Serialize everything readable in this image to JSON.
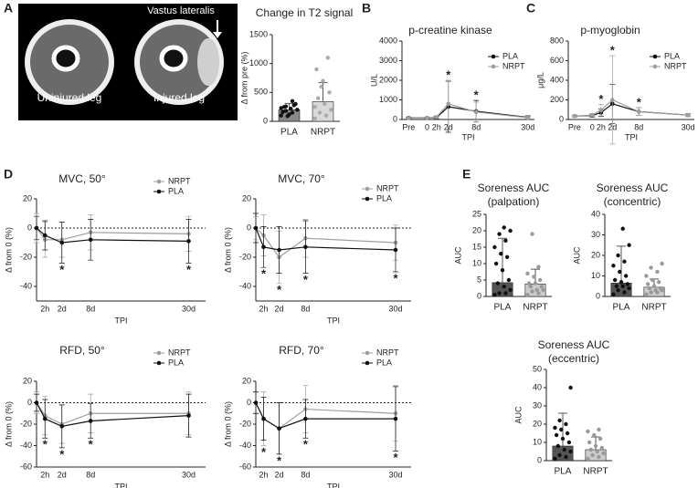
{
  "panel_letters": [
    "A",
    "B",
    "C",
    "D",
    "E"
  ],
  "image": {
    "labels": [
      "Vastus lateralis",
      "Uninjured leg",
      "Injured leg"
    ]
  },
  "chart_data": [
    {
      "type": "bar",
      "title": "Change in T2 signal",
      "ylabel": "Δ from pre (%)",
      "categories": [
        "PLA",
        "NRPT"
      ],
      "values": [
        200,
        340
      ],
      "errors": [
        110,
        330
      ],
      "colors": [
        "#888888",
        "#d9d9d9"
      ],
      "point_colors": [
        "#111111",
        "#aaaaaa"
      ],
      "points": [
        [
          100,
          150,
          180,
          200,
          220,
          250,
          300,
          120,
          160,
          280,
          90,
          230,
          350,
          260
        ],
        [
          50,
          100,
          150,
          200,
          300,
          400,
          500,
          700,
          900,
          1100,
          600,
          250
        ]
      ],
      "ylim": [
        0,
        1500
      ],
      "yticks": [
        0,
        500,
        1000,
        1500
      ]
    },
    {
      "type": "line",
      "title": "p-creatine kinase",
      "ylabel": "U/L",
      "xlabel": "TPI",
      "categories": [
        "Pre",
        "0",
        "2h",
        "2d",
        "8d",
        "30d"
      ],
      "series": [
        {
          "name": "PLA",
          "color": "#111111",
          "values": [
            80,
            80,
            100,
            650,
            420,
            110
          ],
          "errors": [
            40,
            40,
            50,
            1300,
            550,
            80
          ]
        },
        {
          "name": "NRPT",
          "color": "#9e9e9e",
          "values": [
            70,
            80,
            120,
            800,
            380,
            90
          ],
          "errors": [
            30,
            40,
            60,
            1200,
            500,
            60
          ]
        }
      ],
      "annotations": [
        {
          "category": "2d",
          "text": "*"
        },
        {
          "category": "8d",
          "text": "*"
        }
      ],
      "annotation_position": "above",
      "ylim": [
        0,
        4000
      ],
      "yticks": [
        0,
        1000,
        2000,
        3000,
        4000
      ]
    },
    {
      "type": "line",
      "title": "p-myoglobin",
      "ylabel": "μg/L",
      "xlabel": "TPI",
      "categories": [
        "Pre",
        "0",
        "2h",
        "2d",
        "8d",
        "30d"
      ],
      "series": [
        {
          "name": "PLA",
          "color": "#111111",
          "values": [
            35,
            40,
            70,
            160,
            80,
            45
          ],
          "errors": [
            10,
            15,
            40,
            200,
            40,
            15
          ]
        },
        {
          "name": "NRPT",
          "color": "#9e9e9e",
          "values": [
            35,
            45,
            95,
            200,
            80,
            45
          ],
          "errors": [
            10,
            15,
            60,
            450,
            40,
            15
          ]
        }
      ],
      "annotations": [
        {
          "category": "2h",
          "text": "*"
        },
        {
          "category": "2d",
          "text": "*"
        },
        {
          "category": "8d",
          "text": "*"
        }
      ],
      "annotation_position": "above",
      "ylim": [
        0,
        800
      ],
      "yticks": [
        0,
        200,
        400,
        600,
        800
      ]
    },
    {
      "type": "line",
      "title": "MVC, 50°",
      "ylabel": "Δ from 0  (%)",
      "xlabel": "TPI",
      "categories": [
        null,
        "2h",
        "2d",
        "8d",
        "30d"
      ],
      "series": [
        {
          "name": "NRPT",
          "color": "#9e9e9e",
          "values": [
            0,
            -8,
            -8,
            -3,
            -4
          ],
          "errors": [
            10,
            12,
            12,
            12,
            12
          ]
        },
        {
          "name": "PLA",
          "color": "#111111",
          "values": [
            0,
            -5,
            -10,
            -8,
            -9
          ],
          "errors": [
            8,
            10,
            14,
            14,
            15
          ]
        }
      ],
      "annotations": [
        {
          "category": "2d",
          "text": "*"
        },
        {
          "category": "30d",
          "text": "*"
        }
      ],
      "annotation_position": "below",
      "zero_line": true,
      "ylim": [
        -50,
        20
      ],
      "yticks": [
        -40,
        -20,
        0,
        20
      ]
    },
    {
      "type": "line",
      "title": "MVC, 70°",
      "ylabel": "Δ from 0  (%)",
      "xlabel": "TPI",
      "categories": [
        null,
        "2h",
        "2d",
        "8d",
        "30d"
      ],
      "series": [
        {
          "name": "NRPT",
          "color": "#9e9e9e",
          "values": [
            0,
            -5,
            -20,
            -7,
            -10
          ],
          "errors": [
            8,
            14,
            18,
            13,
            12
          ]
        },
        {
          "name": "PLA",
          "color": "#111111",
          "values": [
            0,
            -13,
            -15,
            -13,
            -15
          ],
          "errors": [
            10,
            14,
            16,
            18,
            15
          ]
        }
      ],
      "annotations": [
        {
          "category": "2h",
          "text": "*"
        },
        {
          "category": "2d",
          "text": "*"
        },
        {
          "category": "8d",
          "text": "*"
        },
        {
          "category": "30d",
          "text": "*"
        }
      ],
      "annotation_position": "below",
      "zero_line": true,
      "ylim": [
        -50,
        20
      ],
      "yticks": [
        -40,
        -20,
        0,
        20
      ]
    },
    {
      "type": "line",
      "title": "RFD, 50°",
      "ylabel": "Δ from 0  (%)",
      "xlabel": "TPI",
      "categories": [
        null,
        "2h",
        "2d",
        "8d",
        "30d"
      ],
      "series": [
        {
          "name": "NRPT",
          "color": "#9e9e9e",
          "values": [
            0,
            -12,
            -20,
            -10,
            -10
          ],
          "errors": [
            10,
            18,
            18,
            18,
            20
          ]
        },
        {
          "name": "PLA",
          "color": "#111111",
          "values": [
            0,
            -15,
            -22,
            -17,
            -12
          ],
          "errors": [
            8,
            18,
            20,
            16,
            20
          ]
        }
      ],
      "annotations": [
        {
          "category": "2h",
          "text": "*"
        },
        {
          "category": "2d",
          "text": "*"
        },
        {
          "category": "8d",
          "text": "*"
        }
      ],
      "annotation_position": "below",
      "zero_line": true,
      "ylim": [
        -60,
        20
      ],
      "yticks": [
        -60,
        -40,
        -20,
        0,
        20
      ]
    },
    {
      "type": "line",
      "title": "RFD, 70°",
      "ylabel": "Δ from 0  (%)",
      "xlabel": "TPI",
      "categories": [
        null,
        "2h",
        "2d",
        "8d",
        "30d"
      ],
      "series": [
        {
          "name": "NRPT",
          "color": "#9e9e9e",
          "values": [
            0,
            -15,
            -24,
            -6,
            -10
          ],
          "errors": [
            10,
            25,
            24,
            22,
            26
          ]
        },
        {
          "name": "PLA",
          "color": "#111111",
          "values": [
            0,
            -15,
            -24,
            -15,
            -15
          ],
          "errors": [
            10,
            20,
            24,
            18,
            30
          ]
        }
      ],
      "annotations": [
        {
          "category": "2h",
          "text": "*"
        },
        {
          "category": "2d",
          "text": "*"
        },
        {
          "category": "8d",
          "text": "*"
        },
        {
          "category": "30d",
          "text": "*"
        }
      ],
      "annotation_position": "below",
      "zero_line": true,
      "ylim": [
        -60,
        20
      ],
      "yticks": [
        -60,
        -40,
        -20,
        0,
        20
      ]
    },
    {
      "type": "bar",
      "title": [
        "Soreness AUC",
        "(palpation)"
      ],
      "ylabel": "AUC",
      "categories": [
        "PLA",
        "NRPT"
      ],
      "values": [
        4.2,
        3.8
      ],
      "errors": [
        13.5,
        4.5
      ],
      "colors": [
        "#555555",
        "#cccccc"
      ],
      "point_colors": [
        "#111111",
        "#999999"
      ],
      "points": [
        [
          0.5,
          1,
          1,
          2,
          3,
          4,
          5,
          8,
          10,
          12,
          13,
          15,
          17,
          19,
          20,
          21
        ],
        [
          0.5,
          1,
          1.5,
          2,
          2,
          3,
          3,
          4,
          4,
          5,
          6,
          7,
          9,
          19
        ]
      ],
      "ylim": [
        0,
        25
      ],
      "yticks": [
        0,
        5,
        10,
        15,
        20,
        25
      ]
    },
    {
      "type": "bar",
      "title": [
        "Soreness AUC",
        "(concentric)"
      ],
      "ylabel": "AUC",
      "categories": [
        "PLA",
        "NRPT"
      ],
      "values": [
        6.5,
        4.5
      ],
      "errors": [
        18,
        4
      ],
      "colors": [
        "#555555",
        "#cccccc"
      ],
      "point_colors": [
        "#111111",
        "#999999"
      ],
      "points": [
        [
          1,
          2,
          3,
          4,
          5,
          5,
          6,
          7,
          8,
          10,
          12,
          15,
          17,
          20,
          25,
          33
        ],
        [
          1,
          2,
          2,
          3,
          3,
          4,
          4,
          5,
          6,
          7,
          8,
          10,
          12,
          14,
          16
        ]
      ],
      "ylim": [
        0,
        40
      ],
      "yticks": [
        0,
        10,
        20,
        30,
        40
      ]
    },
    {
      "type": "bar",
      "title": [
        "Soreness AUC",
        "(eccentric)"
      ],
      "ylabel": "AUC",
      "categories": [
        "PLA",
        "NRPT"
      ],
      "values": [
        8,
        6
      ],
      "errors": [
        18,
        7
      ],
      "colors": [
        "#555555",
        "#cccccc"
      ],
      "point_colors": [
        "#111111",
        "#999999"
      ],
      "points": [
        [
          1,
          2,
          3,
          5,
          6,
          8,
          10,
          12,
          14,
          15,
          17,
          18,
          20,
          22,
          40
        ],
        [
          1,
          2,
          3,
          4,
          5,
          6,
          7,
          8,
          10,
          12,
          14,
          16,
          17
        ]
      ],
      "ylim": [
        0,
        50
      ],
      "yticks": [
        0,
        10,
        20,
        30,
        40,
        50
      ]
    }
  ]
}
